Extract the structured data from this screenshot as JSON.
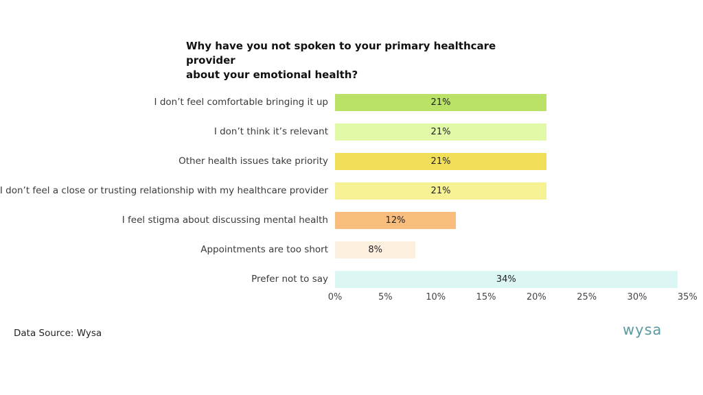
{
  "chart_data": {
    "type": "bar",
    "orientation": "horizontal",
    "title": "Why have you not spoken to your primary healthcare provider about your emotional health?",
    "categories": [
      "I don’t feel comfortable bringing it up",
      "I don’t think it’s relevant",
      "Other health issues take priority",
      "I don’t feel a close or trusting relationship with my healthcare provider",
      "I feel stigma about discussing mental health",
      "Appointments are too short",
      "Prefer not to say"
    ],
    "values": [
      21,
      21,
      21,
      21,
      12,
      8,
      34
    ],
    "value_labels": [
      "21%",
      "21%",
      "21%",
      "21%",
      "12%",
      "8%",
      "34%"
    ],
    "colors": [
      "#b9e266",
      "#e2f9a8",
      "#f1df5a",
      "#f6f293",
      "#f9bd7e",
      "#fef0df",
      "#dcf6f3"
    ],
    "xlabel": "",
    "ylabel": "",
    "xlim": [
      0,
      35
    ],
    "x_ticks": [
      "0%",
      "5%",
      "10%",
      "15%",
      "20%",
      "25%",
      "30%",
      "35%"
    ],
    "grid": false,
    "legend": "none"
  },
  "title_line1": "Why have you not spoken to your primary healthcare provider",
  "title_line2": "about your emotional health?",
  "footer": {
    "source": "Data Source: Wysa",
    "logo": "wysa"
  }
}
